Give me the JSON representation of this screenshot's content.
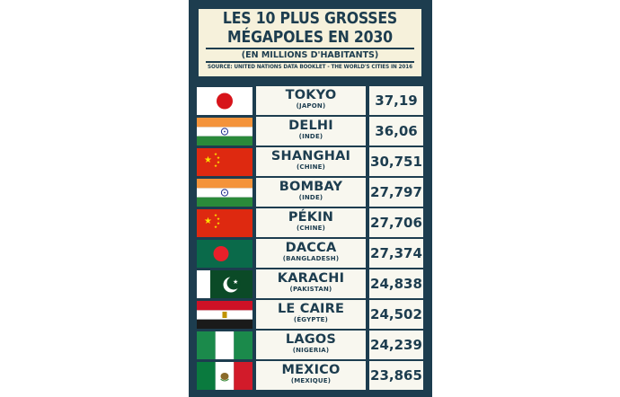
{
  "header": {
    "title_line1": "LES 10 PLUS GROSSES",
    "title_line2": "MÉGAPOLES EN 2030",
    "subtitle": "(EN MILLIONS D'HABITANTS)",
    "source": "SOURCE: UNITED NATIONS DATA BOOKLET - THE WORLD'S CITIES IN 2016"
  },
  "colors": {
    "panel": "#1d3d4f",
    "header_bg": "#f6f1db",
    "cell_bg": "#f8f7ef",
    "text": "#1d3d4f"
  },
  "chart_data": {
    "type": "table",
    "title": "LES 10 PLUS GROSSES MÉGAPOLES EN 2030",
    "subtitle": "(EN MILLIONS D'HABITANTS)",
    "columns": [
      "flag",
      "city",
      "population"
    ],
    "rows": [
      {
        "city": "TOKYO",
        "country": "(JAPON)",
        "value": "37,19",
        "flag": "japan-flag-icon"
      },
      {
        "city": "DELHI",
        "country": "(INDE)",
        "value": "36,06",
        "flag": "india-flag-icon"
      },
      {
        "city": "SHANGHAI",
        "country": "(CHINE)",
        "value": "30,751",
        "flag": "china-flag-icon"
      },
      {
        "city": "BOMBAY",
        "country": "(INDE)",
        "value": "27,797",
        "flag": "india-flag-icon"
      },
      {
        "city": "PÉKIN",
        "country": "(CHINE)",
        "value": "27,706",
        "flag": "china-flag-icon"
      },
      {
        "city": "DACCA",
        "country": "(BANGLADESH)",
        "value": "27,374",
        "flag": "bangladesh-flag-icon"
      },
      {
        "city": "KARACHI",
        "country": "(PAKISTAN)",
        "value": "24,838",
        "flag": "pakistan-flag-icon"
      },
      {
        "city": "LE CAIRE",
        "country": "(ÉGYPTE)",
        "value": "24,502",
        "flag": "egypt-flag-icon"
      },
      {
        "city": "LAGOS",
        "country": "(NIGERIA)",
        "value": "24,239",
        "flag": "nigeria-flag-icon"
      },
      {
        "city": "MEXICO",
        "country": "(MEXIQUE)",
        "value": "23,865",
        "flag": "mexico-flag-icon"
      }
    ]
  }
}
